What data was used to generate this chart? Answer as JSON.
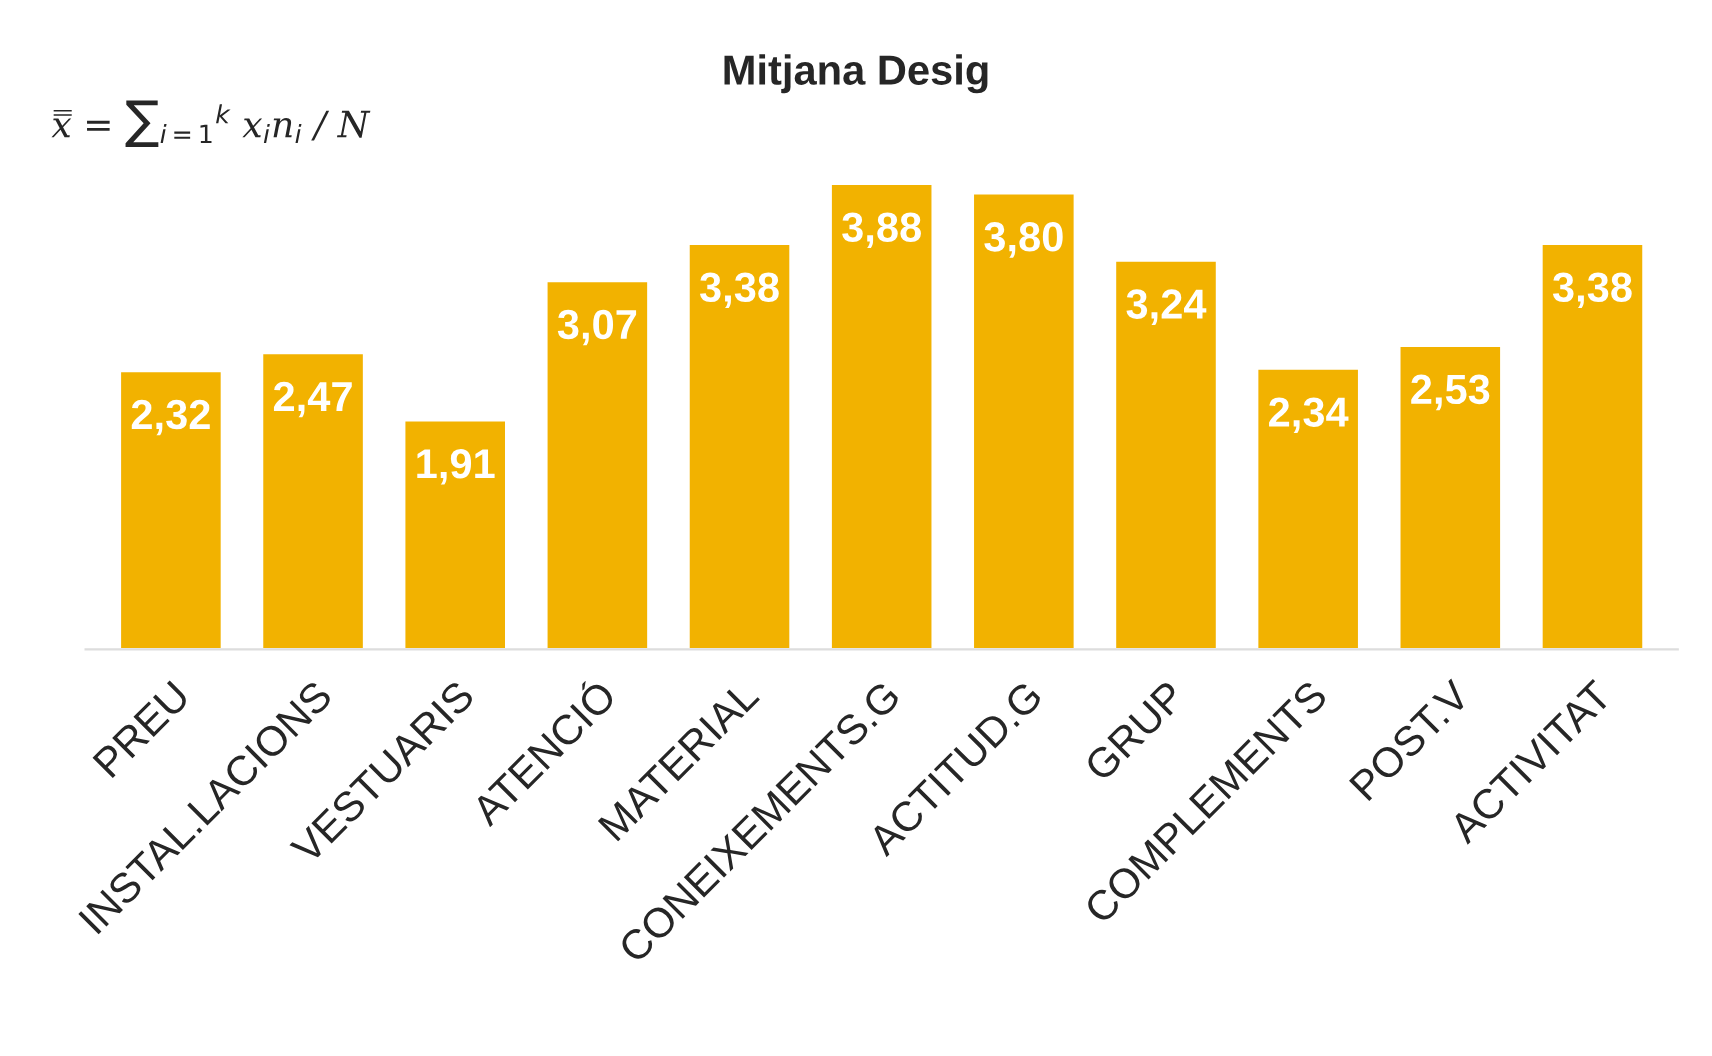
{
  "chart_data": {
    "type": "bar",
    "title": "Mitjana Desig",
    "categories": [
      "PREU",
      "INSTAL.LACIONS",
      "VESTUARIS",
      "ATENCIÓ",
      "MATERIAL",
      "CONEIXEMENTS.G",
      "ACTITUD.G",
      "GRUP",
      "COMPLEMENTS",
      "POST.V",
      "ACTIVITAT"
    ],
    "values": [
      2.32,
      2.47,
      1.91,
      3.07,
      3.38,
      3.88,
      3.8,
      3.24,
      2.34,
      2.53,
      3.38
    ],
    "value_labels": [
      "2,32",
      "2,47",
      "1,91",
      "3,07",
      "3,38",
      "3,88",
      "3,80",
      "3,24",
      "2,34",
      "2,53",
      "3,38"
    ],
    "color": "#f2b200",
    "annotations": [
      "x̿ = ∑$_{i=1}$$^{k}$ x$_{i}$n$_{i}$ / N"
    ],
    "grid": false,
    "legend": false
  }
}
